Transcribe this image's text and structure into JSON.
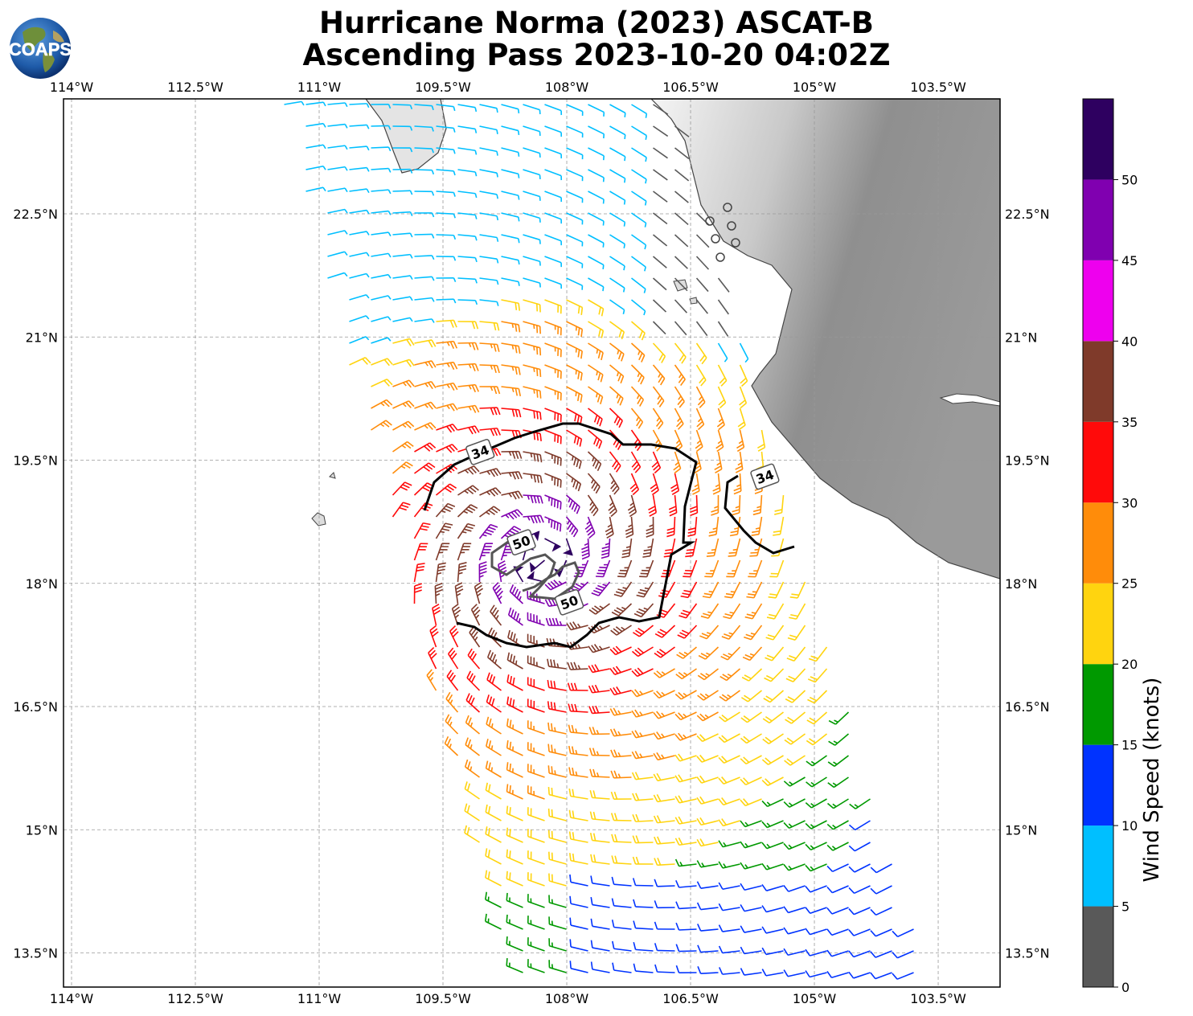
{
  "header": {
    "title_line1": "Hurricane Norma (2023) ASCAT-B",
    "title_line2": "Ascending Pass 2023-10-20 04:02Z",
    "logo_text": "COAPS"
  },
  "map": {
    "lon_ticks": [
      "114°W",
      "112.5°W",
      "111°W",
      "109.5°W",
      "108°W",
      "106.5°W",
      "105°W",
      "103.5°W"
    ],
    "lat_ticks": [
      "22.5°N",
      "21°N",
      "19.5°N",
      "18°N",
      "16.5°N",
      "15°N",
      "13.5°N"
    ],
    "lon_values": [
      -114,
      -112.5,
      -111,
      -109.5,
      -108,
      -106.5,
      -105,
      -103.5
    ],
    "lat_values": [
      22.5,
      21,
      19.5,
      18,
      16.5,
      15,
      13.5
    ],
    "storm_center": {
      "lon": -108.3,
      "lat": 18.3
    },
    "contour_labels": [
      {
        "text": "34",
        "lon": -109.05,
        "lat": 19.6
      },
      {
        "text": "34",
        "lon": -105.6,
        "lat": 19.3
      },
      {
        "text": "50",
        "lon": -108.55,
        "lat": 18.5
      },
      {
        "text": "50",
        "lon": -107.97,
        "lat": 17.77
      }
    ]
  },
  "colorbar": {
    "label": "Wind Speed (knots)",
    "ticks": [
      "0",
      "5",
      "10",
      "15",
      "20",
      "25",
      "30",
      "35",
      "40",
      "45",
      "50"
    ],
    "bins": [
      {
        "min": 0,
        "max": 5,
        "color": "#595959"
      },
      {
        "min": 5,
        "max": 10,
        "color": "#00bfff"
      },
      {
        "min": 10,
        "max": 15,
        "color": "#0033ff"
      },
      {
        "min": 15,
        "max": 20,
        "color": "#009900"
      },
      {
        "min": 20,
        "max": 25,
        "color": "#ffd40f"
      },
      {
        "min": 25,
        "max": 30,
        "color": "#ff8c0a"
      },
      {
        "min": 30,
        "max": 35,
        "color": "#ff0a0a"
      },
      {
        "min": 35,
        "max": 40,
        "color": "#7f3a2a"
      },
      {
        "min": 40,
        "max": 45,
        "color": "#ee00ee"
      },
      {
        "min": 45,
        "max": 50,
        "color": "#8000b0"
      },
      {
        "min": 50,
        "max": 55,
        "color": "#2e0060"
      }
    ]
  }
}
